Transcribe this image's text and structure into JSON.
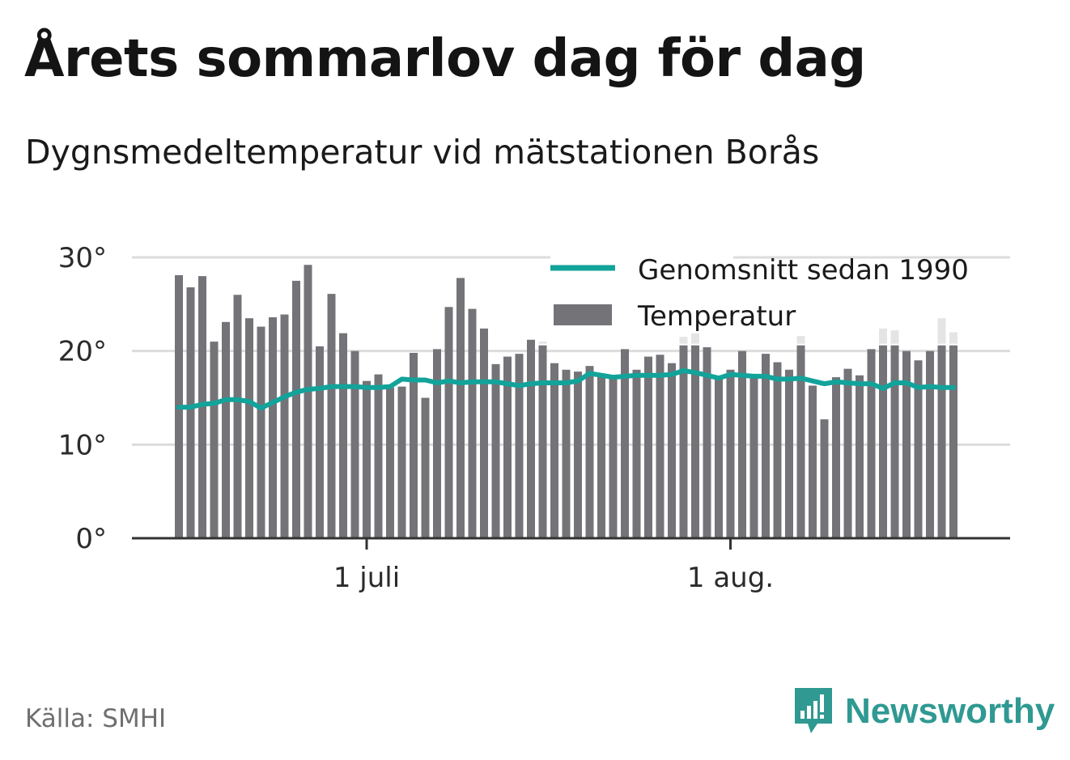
{
  "header": {
    "title": "Årets sommarlov dag för dag",
    "subtitle": "Dygnsmedeltemperatur vid mätstationen Borås"
  },
  "footer": {
    "source": "Källa: SMHI",
    "brand": "Newsworthy"
  },
  "colors": {
    "bar": "#747378",
    "bar_range": "#e4e4e4",
    "average_line": "#12a39a",
    "grid": "#dcdcdc",
    "axis": "#333333",
    "brand": "#2f9992"
  },
  "chart_data": {
    "type": "bar",
    "x_start": "2021-06-15",
    "x_ticks": [
      {
        "date": "2021-07-01",
        "label": "1 juli"
      },
      {
        "date": "2021-08-01",
        "label": "1 aug."
      }
    ],
    "y_ticks": [
      {
        "value": 0,
        "label": "0°"
      },
      {
        "value": 10,
        "label": "10°"
      },
      {
        "value": 20,
        "label": "20°"
      },
      {
        "value": 30,
        "label": "30°"
      }
    ],
    "ylim": [
      0,
      30
    ],
    "grid": true,
    "legend_position": "top-right",
    "series": [
      {
        "name": "Temperatur",
        "kind": "bar",
        "values": [
          28.1,
          26.8,
          28.0,
          21.0,
          23.1,
          26.0,
          23.5,
          22.6,
          23.6,
          23.9,
          27.5,
          29.2,
          20.5,
          26.1,
          21.9,
          20.0,
          16.8,
          17.5,
          16.1,
          16.2,
          19.8,
          15.0,
          20.2,
          24.7,
          27.8,
          24.5,
          22.4,
          18.6,
          19.4,
          19.7,
          21.2,
          20.6,
          18.7,
          18.0,
          17.8,
          18.4,
          17.6,
          17.2,
          20.2,
          18.0,
          19.4,
          19.6,
          18.7,
          20.6,
          20.6,
          20.4,
          17.2,
          18.0,
          20.0,
          17.3,
          19.7,
          18.8,
          18.0,
          20.6,
          16.3,
          12.7,
          17.2,
          18.1,
          17.4,
          20.2,
          20.6,
          20.6,
          20.0,
          19.0,
          20.0,
          20.6,
          20.6
        ],
        "upper": [
          null,
          null,
          null,
          null,
          null,
          null,
          null,
          null,
          null,
          null,
          null,
          null,
          null,
          null,
          null,
          null,
          null,
          null,
          null,
          null,
          null,
          null,
          null,
          null,
          null,
          null,
          null,
          null,
          null,
          null,
          null,
          21.0,
          null,
          null,
          null,
          null,
          null,
          null,
          null,
          null,
          null,
          null,
          null,
          21.5,
          22.5,
          null,
          null,
          null,
          null,
          null,
          null,
          null,
          null,
          21.6,
          null,
          null,
          null,
          null,
          null,
          null,
          22.4,
          22.2,
          null,
          null,
          null,
          23.5,
          22.0
        ]
      },
      {
        "name": "Genomsnitt sedan 1990",
        "kind": "line",
        "values": [
          14.0,
          14.0,
          14.3,
          14.4,
          14.8,
          14.8,
          14.6,
          13.9,
          14.5,
          15.1,
          15.6,
          15.9,
          16.0,
          16.2,
          16.2,
          16.2,
          16.1,
          16.1,
          16.2,
          17.0,
          16.9,
          16.9,
          16.6,
          16.8,
          16.6,
          16.7,
          16.7,
          16.7,
          16.5,
          16.3,
          16.5,
          16.6,
          16.6,
          16.6,
          16.8,
          17.6,
          17.4,
          17.2,
          17.3,
          17.4,
          17.4,
          17.4,
          17.5,
          17.9,
          17.7,
          17.4,
          17.1,
          17.5,
          17.4,
          17.3,
          17.3,
          17.0,
          17.0,
          17.1,
          16.8,
          16.5,
          16.7,
          16.6,
          16.5,
          16.5,
          16.0,
          16.6,
          16.6,
          16.1,
          16.2,
          16.1,
          16.1
        ]
      }
    ]
  }
}
